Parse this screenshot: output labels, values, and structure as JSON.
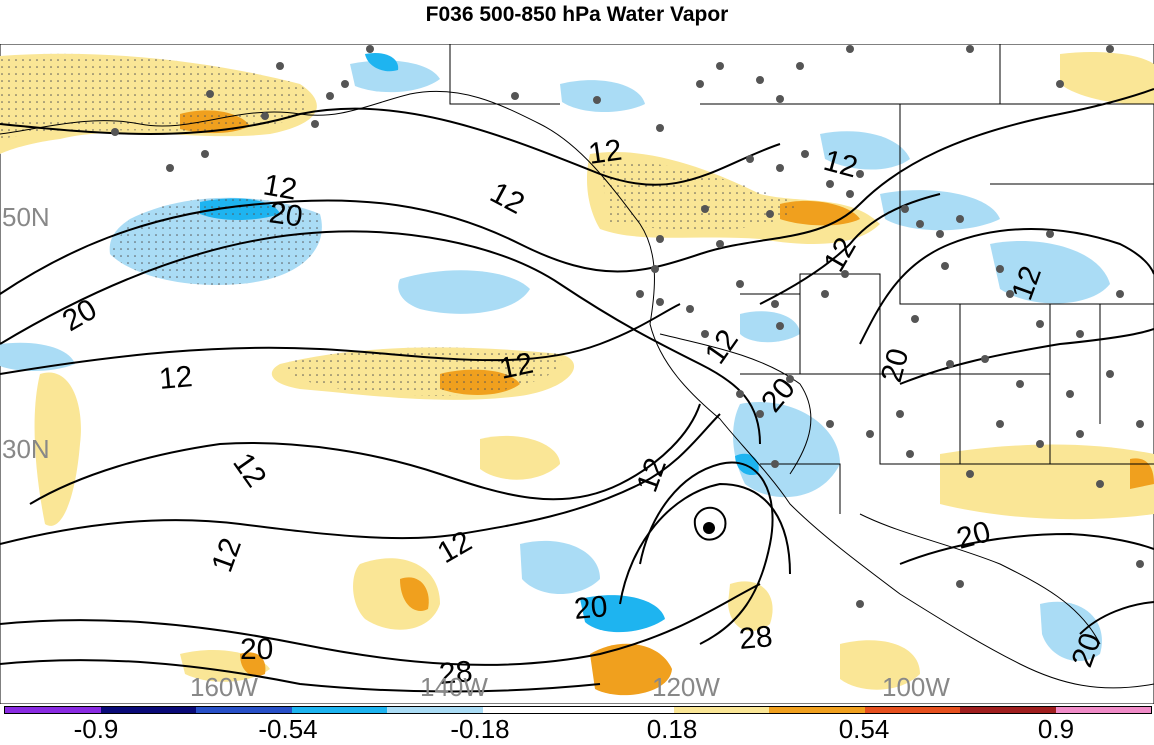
{
  "title": "F036 500-850 hPa Water Vapor",
  "lat_labels": [
    "50N",
    "30N"
  ],
  "lon_labels": [
    "160W",
    "140W",
    "120W",
    "100W"
  ],
  "contour_labels": [
    "12",
    "20",
    "28"
  ],
  "colorbar": {
    "colors": [
      "#8a2be2",
      "#0a0a78",
      "#2850c8",
      "#1eb4f0",
      "#aadcf5",
      "#ffffff",
      "#ffffff",
      "#fae696",
      "#f0a01e",
      "#e6501e",
      "#a01e1e",
      "#f08cc8"
    ],
    "labels": [
      "-0.9",
      "-0.54",
      "-0.18",
      "0.18",
      "0.54",
      "0.9"
    ]
  }
}
